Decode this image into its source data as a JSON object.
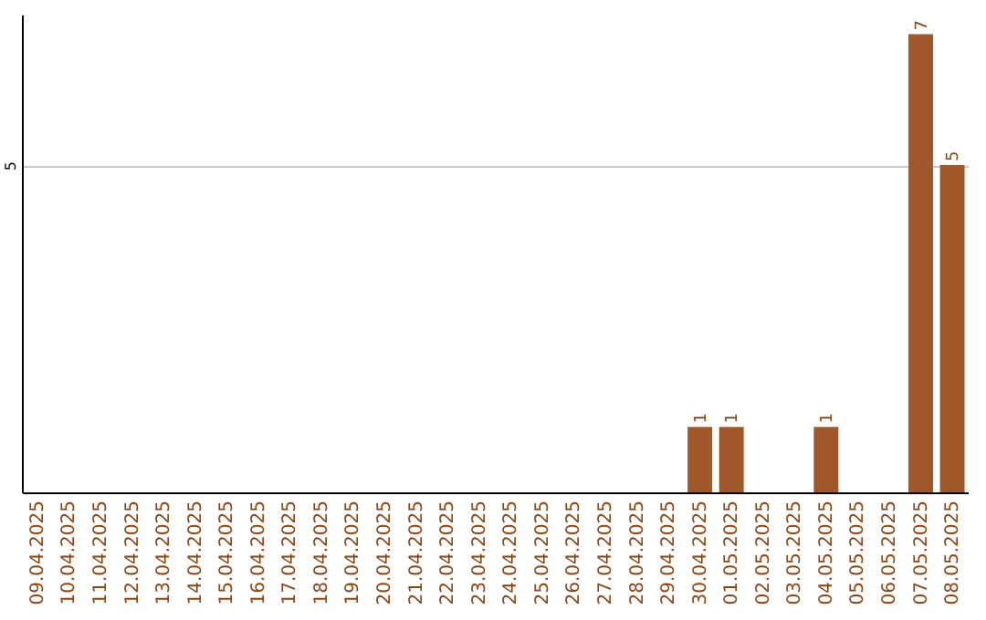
{
  "chart_data": {
    "type": "bar",
    "categories": [
      "09.04.2025",
      "10.04.2025",
      "11.04.2025",
      "12.04.2025",
      "13.04.2025",
      "14.04.2025",
      "15.04.2025",
      "16.04.2025",
      "17.04.2025",
      "18.04.2025",
      "19.04.2025",
      "20.04.2025",
      "21.04.2025",
      "22.04.2025",
      "23.04.2025",
      "24.04.2025",
      "25.04.2025",
      "26.04.2025",
      "27.04.2025",
      "28.04.2025",
      "29.04.2025",
      "30.04.2025",
      "01.05.2025",
      "02.05.2025",
      "03.05.2025",
      "04.05.2025",
      "05.05.2025",
      "06.05.2025",
      "07.05.2025",
      "08.05.2025"
    ],
    "values": [
      null,
      null,
      null,
      null,
      null,
      null,
      null,
      null,
      null,
      null,
      null,
      null,
      null,
      null,
      null,
      null,
      null,
      null,
      null,
      null,
      null,
      1,
      1,
      null,
      null,
      1,
      null,
      null,
      7,
      5
    ],
    "color": "#a0582a",
    "ylim": [
      0,
      7.3
    ],
    "yticks": [
      5
    ],
    "grid": "y",
    "data_labels": true
  }
}
